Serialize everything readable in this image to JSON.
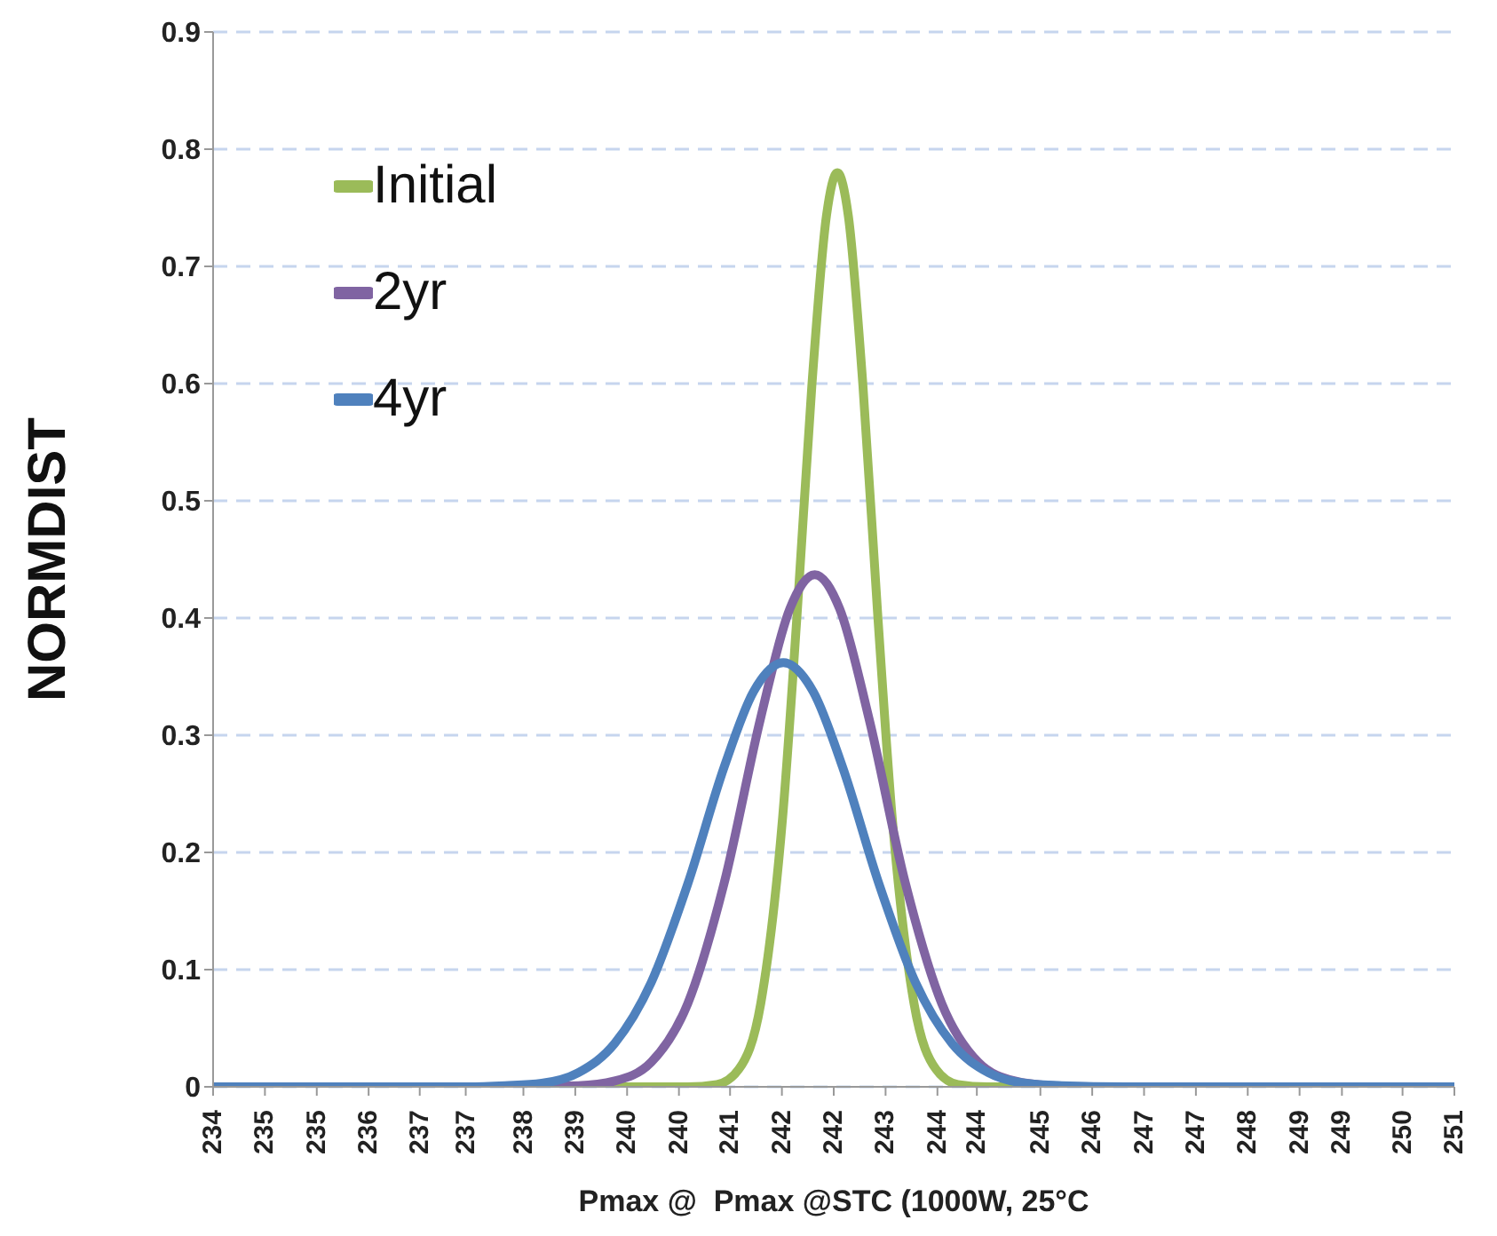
{
  "chart_data": {
    "type": "line",
    "xlabel": "Pmax @  Pmax @STC (1000W, 25°C",
    "ylabel": "NORMDIST",
    "xlim": [
      234,
      251
    ],
    "xticks": [
      {
        "value": 234,
        "label": "234"
      },
      {
        "value": 234.71,
        "label": "235"
      },
      {
        "value": 235.42,
        "label": "235"
      },
      {
        "value": 236.13,
        "label": "236"
      },
      {
        "value": 236.83,
        "label": "237"
      },
      {
        "value": 237.46,
        "label": "237"
      },
      {
        "value": 238.25,
        "label": "238"
      },
      {
        "value": 238.96,
        "label": "239"
      },
      {
        "value": 239.67,
        "label": "240"
      },
      {
        "value": 240.38,
        "label": "240"
      },
      {
        "value": 241.08,
        "label": "241"
      },
      {
        "value": 241.79,
        "label": "242"
      },
      {
        "value": 242.5,
        "label": "242"
      },
      {
        "value": 243.21,
        "label": "243"
      },
      {
        "value": 243.92,
        "label": "244"
      },
      {
        "value": 244.46,
        "label": "244"
      },
      {
        "value": 245.33,
        "label": "245"
      },
      {
        "value": 246.04,
        "label": "246"
      },
      {
        "value": 246.75,
        "label": "247"
      },
      {
        "value": 247.46,
        "label": "247"
      },
      {
        "value": 248.17,
        "label": "248"
      },
      {
        "value": 248.88,
        "label": "249"
      },
      {
        "value": 249.46,
        "label": "249"
      },
      {
        "value": 250.29,
        "label": "250"
      },
      {
        "value": 251,
        "label": "251"
      }
    ],
    "ylim": [
      0,
      0.9
    ],
    "yticks": [
      0,
      0.1,
      0.2,
      0.3,
      0.4,
      0.5,
      0.6,
      0.7,
      0.8,
      0.9
    ],
    "grid": "y",
    "legend": "top left",
    "marker": "none",
    "line_style": "solid",
    "series": [
      {
        "name": "Initial",
        "color": "#9bbb59",
        "x": [
          234,
          240.5,
          240.9,
          241.2,
          241.5,
          241.8,
          242.0,
          242.2,
          242.4,
          242.55,
          242.7,
          242.9,
          243.1,
          243.3,
          243.6,
          243.9,
          244.2,
          244.6,
          251
        ],
        "values": [
          0,
          0,
          0.002,
          0.015,
          0.071,
          0.23,
          0.405,
          0.598,
          0.743,
          0.78,
          0.743,
          0.598,
          0.405,
          0.23,
          0.071,
          0.015,
          0.002,
          0,
          0
        ]
      },
      {
        "name": "2yr",
        "color": "#8064a2",
        "x": [
          234,
          238,
          239,
          239.5,
          240,
          240.5,
          241,
          241.5,
          241.9,
          242.24,
          242.58,
          242.98,
          243.48,
          243.98,
          244.48,
          244.98,
          245.48,
          246,
          251
        ],
        "values": [
          0,
          0,
          0.001,
          0.005,
          0.021,
          0.071,
          0.174,
          0.315,
          0.408,
          0.437,
          0.408,
          0.315,
          0.174,
          0.071,
          0.021,
          0.005,
          0.001,
          0,
          0
        ]
      },
      {
        "name": "4yr",
        "color": "#4f81bd",
        "x": [
          234,
          236.5,
          237.5,
          238,
          238.5,
          239,
          239.5,
          240,
          240.5,
          241,
          241.4,
          241.81,
          242.22,
          242.62,
          243.12,
          243.62,
          244.12,
          244.62,
          245.12,
          245.62,
          246.5,
          251
        ],
        "values": [
          0,
          0,
          0,
          0.001,
          0.003,
          0.012,
          0.037,
          0.089,
          0.173,
          0.273,
          0.337,
          0.362,
          0.337,
          0.273,
          0.173,
          0.089,
          0.037,
          0.012,
          0.003,
          0.001,
          0,
          0
        ]
      }
    ]
  }
}
